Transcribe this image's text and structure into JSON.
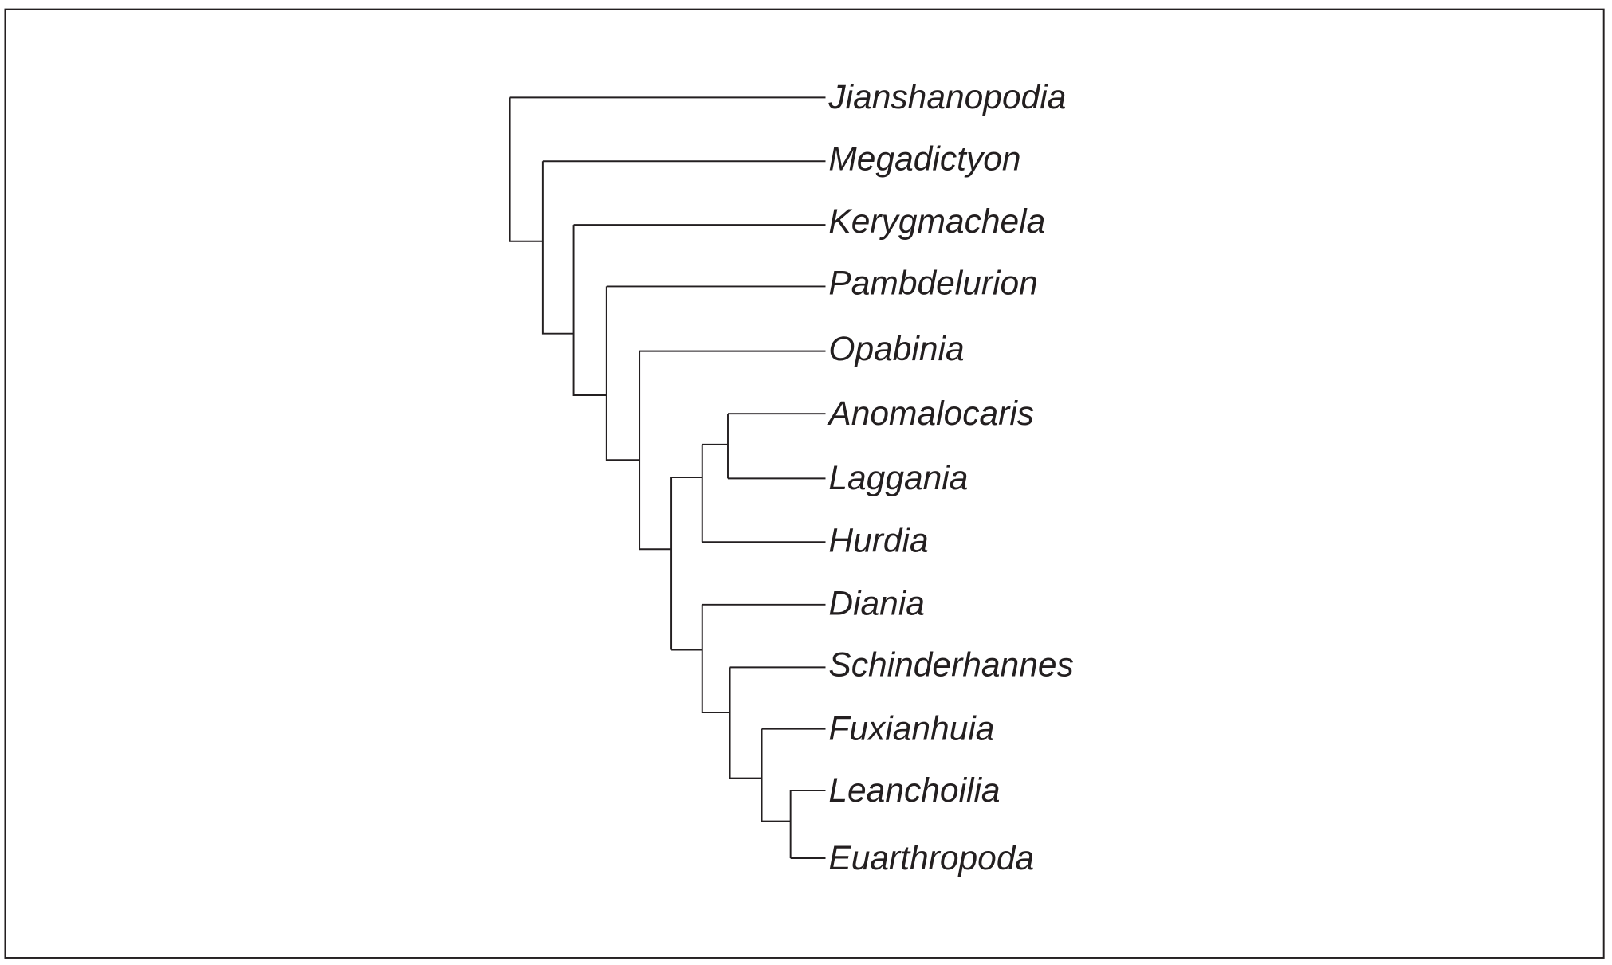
{
  "taxa": [
    "Jianshanopodia",
    "Megadictyon",
    "Kerygmachela",
    "Pambdelurion",
    "Opabinia",
    "Anomalocaris",
    "Laggania",
    "Hurdia",
    "Diania",
    "Schinderhannes",
    "Fuxianhuia",
    "Leanchoilia",
    "Euarthropoda"
  ]
}
